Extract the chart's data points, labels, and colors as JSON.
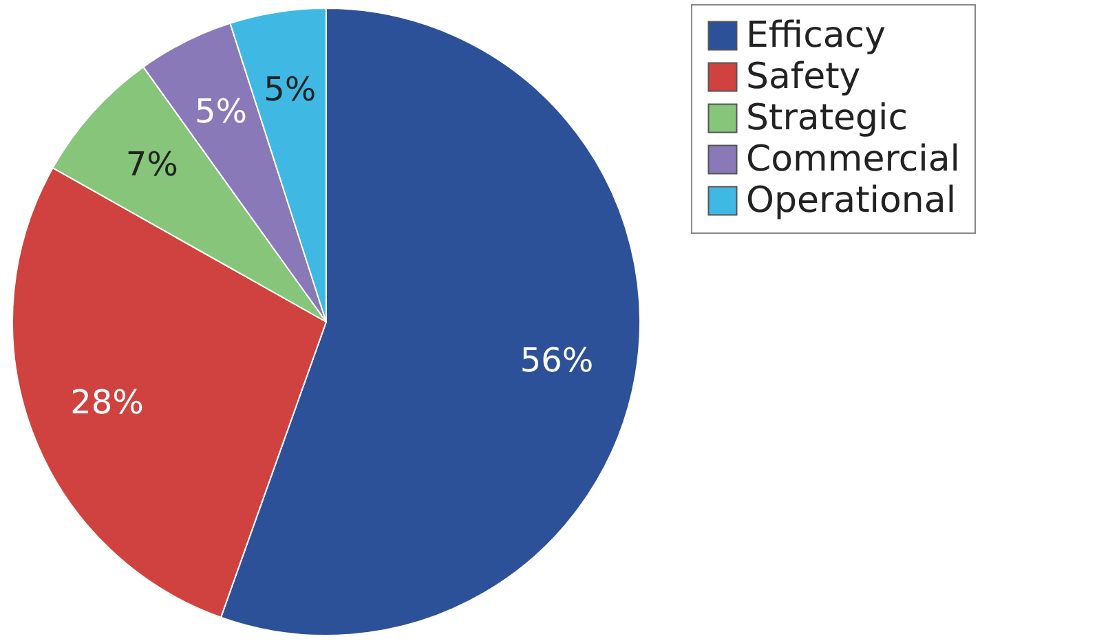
{
  "chart_data": {
    "type": "pie",
    "categories": [
      "Efficacy",
      "Safety",
      "Strategic",
      "Commercial",
      "Operational"
    ],
    "values": [
      56,
      28,
      7,
      5,
      5
    ],
    "colors": [
      "#2d5199",
      "#d0423f",
      "#86c57a",
      "#8a79b8",
      "#3fb9e3"
    ],
    "value_labels": [
      "56%",
      "28%",
      "7%",
      "5%",
      "5%"
    ],
    "legend": "right"
  }
}
